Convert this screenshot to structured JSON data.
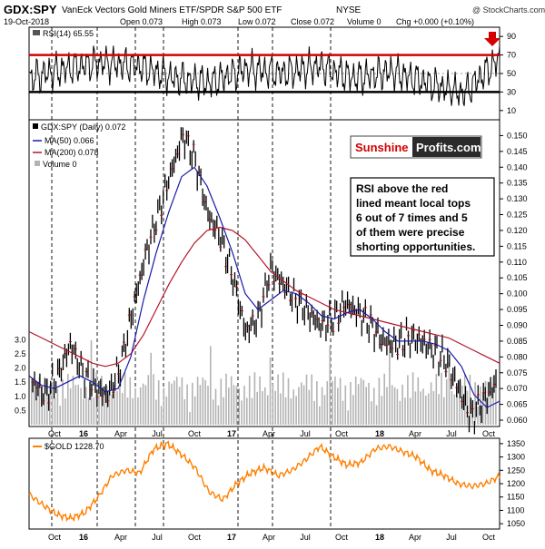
{
  "header": {
    "symbol": "GDX:SPY",
    "name": "VanEck Vectors Gold Miners ETF/SPDR S&P 500 ETF",
    "exchange": "NYSE",
    "credit": "@ StockCharts.com",
    "date": "19-Oct-2018",
    "open": "Open 0.073",
    "high": "High 0.073",
    "low": "Low 0.072",
    "close": "Close 0.072",
    "volume": "Volume 0",
    "chg": "Chg +0.000 (+0.10%)"
  },
  "colors": {
    "price": "#000000",
    "ma50": "#1a1aa6",
    "ma200": "#b3162b",
    "gold": "#ff7f00",
    "hline_red": "#d40000",
    "volume": "#b3b3b3"
  },
  "logo": {
    "part1": "Sunshine",
    "part2": "Profits.com"
  },
  "callout": {
    "lines": [
      "RSI above the red",
      "lined meant local tops",
      "6 out of 7 times and 5",
      "of them were precise",
      "shorting opportunities."
    ]
  },
  "chart_data": [
    {
      "type": "line",
      "name": "rsi-panel",
      "legend": "RSI(14) 65.55",
      "ylim": [
        0,
        100
      ],
      "yticks": [
        10,
        30,
        50,
        70,
        90
      ],
      "hlines": [
        {
          "y": 70,
          "color": "#d40000"
        },
        {
          "y": 30,
          "color": "#000000"
        }
      ],
      "series": [
        {
          "name": "RSI(14)",
          "x": [
            "2015-09",
            "2015-12",
            "2016-03",
            "2016-06",
            "2016-09",
            "2016-12",
            "2017-03",
            "2017-06",
            "2017-09",
            "2017-12",
            "2018-03",
            "2018-06",
            "2018-09",
            "2018-10"
          ],
          "values": [
            45,
            55,
            62,
            58,
            45,
            40,
            55,
            50,
            58,
            45,
            52,
            40,
            28,
            66
          ]
        }
      ]
    },
    {
      "type": "line",
      "name": "price-panel",
      "legend_main": "GDX:SPY (Daily) 0.072",
      "legend_ma50": "MA(50) 0.066",
      "legend_ma200": "MA(200) 0.078",
      "legend_volume": "Volume 0",
      "ylim": [
        0.058,
        0.155
      ],
      "yticks": [
        0.06,
        0.065,
        0.07,
        0.075,
        0.08,
        0.085,
        0.09,
        0.095,
        0.1,
        0.105,
        0.11,
        0.115,
        0.12,
        0.125,
        0.13,
        0.135,
        0.14,
        0.145,
        0.15
      ],
      "volume_ticks": [
        "0.5",
        "1.0",
        "1.5",
        "2.0",
        "2.5",
        "3.0"
      ],
      "x_labels": [
        "Oct",
        "16",
        "Apr",
        "Jul",
        "Oct",
        "17",
        "Apr",
        "Jul",
        "Oct",
        "18",
        "Apr",
        "Jul",
        "Oct"
      ],
      "series": [
        {
          "name": "GDX:SPY",
          "values": [
            0.072,
            0.068,
            0.074,
            0.084,
            0.075,
            0.07,
            0.068,
            0.077,
            0.095,
            0.112,
            0.125,
            0.138,
            0.15,
            0.142,
            0.125,
            0.118,
            0.105,
            0.088,
            0.092,
            0.108,
            0.103,
            0.098,
            0.094,
            0.09,
            0.092,
            0.097,
            0.094,
            0.09,
            0.085,
            0.084,
            0.086,
            0.085,
            0.082,
            0.079,
            0.07,
            0.061,
            0.066,
            0.072
          ]
        },
        {
          "name": "MA(50)",
          "values": [
            0.074,
            0.071,
            0.07,
            0.072,
            0.074,
            0.072,
            0.069,
            0.07,
            0.08,
            0.098,
            0.113,
            0.126,
            0.137,
            0.14,
            0.134,
            0.124,
            0.113,
            0.1,
            0.095,
            0.098,
            0.101,
            0.1,
            0.097,
            0.093,
            0.092,
            0.094,
            0.095,
            0.092,
            0.088,
            0.085,
            0.085,
            0.085,
            0.084,
            0.082,
            0.077,
            0.068,
            0.064,
            0.066
          ]
        },
        {
          "name": "MA(200)",
          "values": [
            0.088,
            0.086,
            0.084,
            0.082,
            0.08,
            0.078,
            0.077,
            0.078,
            0.081,
            0.087,
            0.095,
            0.103,
            0.11,
            0.116,
            0.12,
            0.121,
            0.12,
            0.117,
            0.112,
            0.107,
            0.104,
            0.101,
            0.099,
            0.097,
            0.095,
            0.094,
            0.093,
            0.092,
            0.091,
            0.09,
            0.089,
            0.088,
            0.087,
            0.086,
            0.084,
            0.082,
            0.08,
            0.078
          ]
        }
      ]
    },
    {
      "type": "line",
      "name": "gold-panel",
      "legend": "$GOLD 1228.70",
      "ylim": [
        1030,
        1370
      ],
      "yticks": [
        1050,
        1100,
        1150,
        1200,
        1250,
        1300,
        1350
      ],
      "x_labels": [
        "Oct",
        "16",
        "Apr",
        "Jul",
        "Oct",
        "17",
        "Apr",
        "Jul",
        "Oct",
        "18",
        "Apr",
        "Jul",
        "Oct"
      ],
      "series": [
        {
          "name": "$GOLD",
          "values": [
            1160,
            1120,
            1085,
            1070,
            1090,
            1150,
            1230,
            1250,
            1240,
            1330,
            1350,
            1310,
            1260,
            1170,
            1140,
            1200,
            1240,
            1260,
            1230,
            1250,
            1290,
            1340,
            1300,
            1270,
            1280,
            1330,
            1340,
            1320,
            1300,
            1250,
            1230,
            1200,
            1190,
            1200,
            1228
          ]
        }
      ]
    }
  ]
}
